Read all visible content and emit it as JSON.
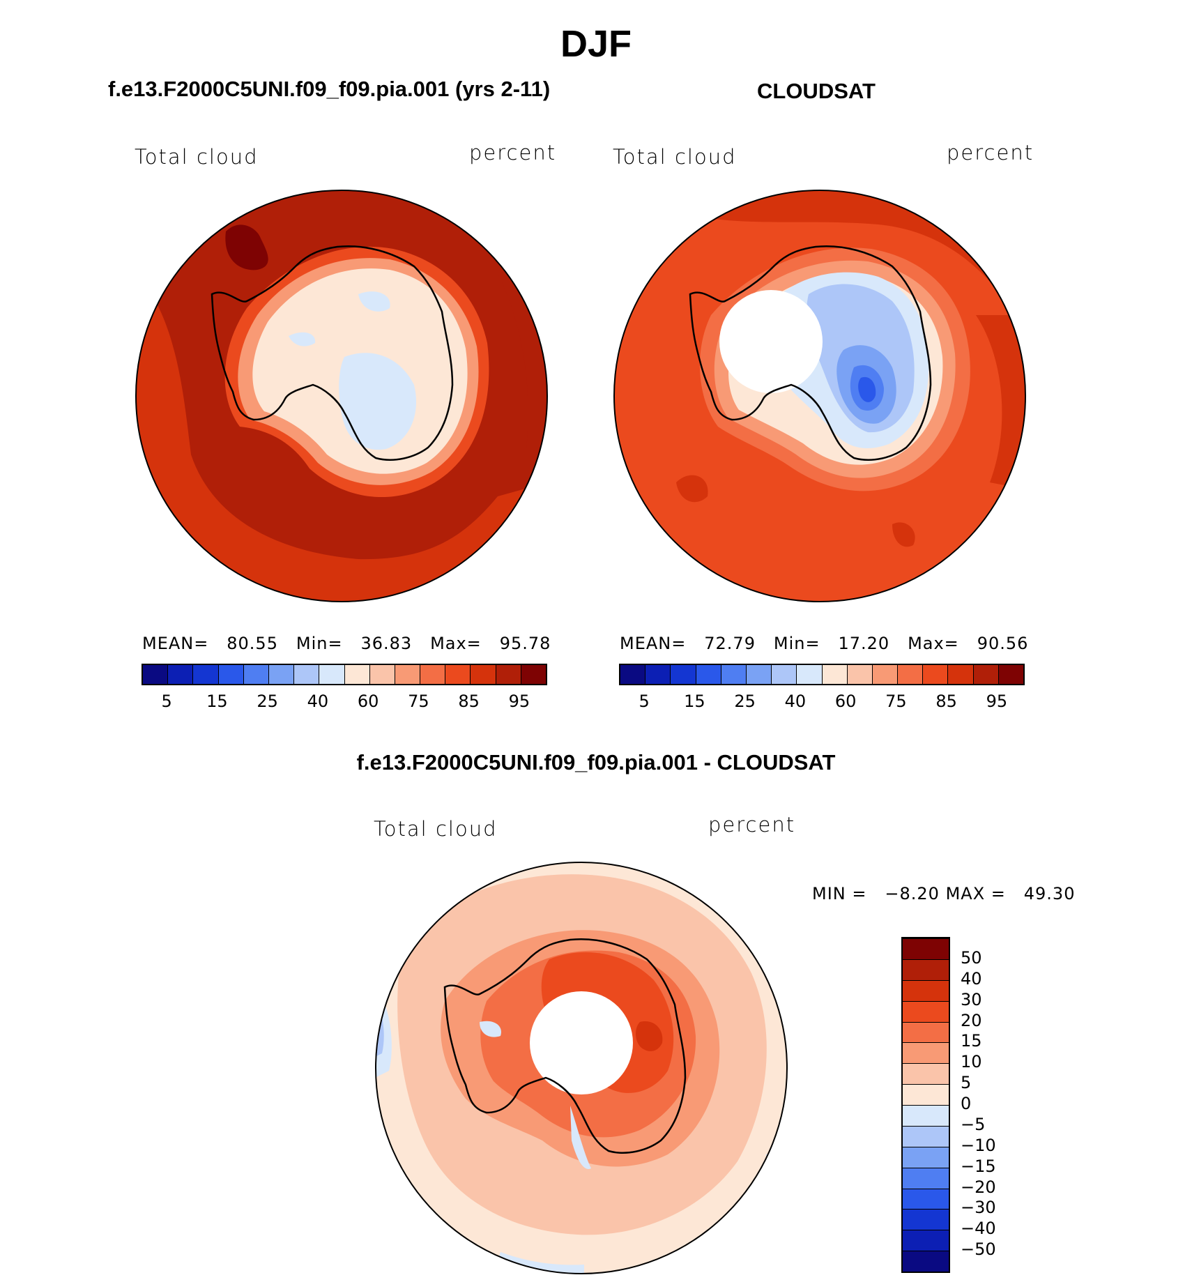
{
  "title": "DJF",
  "panels": [
    {
      "title": "f.e13.F2000C5UNI.f09_f09.pia.001 (yrs 2-11)",
      "left_label": "Total cloud",
      "right_label": "percent",
      "stats": {
        "mean_label": "MEAN=",
        "mean": "80.55",
        "min_label": "Min=",
        "min": "36.83",
        "max_label": "Max=",
        "max": "95.78"
      }
    },
    {
      "title": "CLOUDSAT",
      "left_label": "Total cloud",
      "right_label": "percent",
      "stats": {
        "mean_label": "MEAN=",
        "mean": "72.79",
        "min_label": "Min=",
        "min": "17.20",
        "max_label": "Max=",
        "max": "90.56"
      }
    }
  ],
  "colorbar_top": {
    "colors": [
      "#0a0a82",
      "#0c1fb4",
      "#1436d2",
      "#2a58ea",
      "#4f7ef2",
      "#7aa2f4",
      "#adc6f8",
      "#d8e8fb",
      "#fde7d6",
      "#fac4aa",
      "#f89a75",
      "#f36e45",
      "#eb4a1e",
      "#d5330c",
      "#b01f08",
      "#7e0303"
    ],
    "tick_labels": [
      "5",
      "15",
      "25",
      "40",
      "60",
      "75",
      "85",
      "95"
    ]
  },
  "diff_panel": {
    "title": "f.e13.F2000C5UNI.f09_f09.pia.001 - CLOUDSAT",
    "left_label": "Total cloud",
    "right_label": "percent",
    "min_label": "MIN =",
    "min": "−8.20",
    "max_label": "MAX =",
    "max": "49.30"
  },
  "colorbar_diff": {
    "colors": [
      "#0a0a82",
      "#0c1fb4",
      "#1436d2",
      "#2a58ea",
      "#4f7ef2",
      "#7aa2f4",
      "#adc6f8",
      "#d8e8fb",
      "#fde7d6",
      "#fac4aa",
      "#f89a75",
      "#f36e45",
      "#eb4a1e",
      "#d5330c",
      "#b01f08",
      "#7e0303"
    ],
    "tick_labels": [
      "−50",
      "−40",
      "−30",
      "−20",
      "−15",
      "−10",
      "−5",
      "0",
      "5",
      "10",
      "15",
      "20",
      "30",
      "40",
      "50"
    ]
  },
  "map_colors": {
    "dark_red": "#b01f08",
    "red": "#d5330c",
    "orange_red": "#eb4a1e",
    "orange": "#f36e45",
    "salmon": "#f89a75",
    "light_salmon": "#fac4aa",
    "cream": "#fde7d6",
    "pale_blue": "#d8e8fb",
    "light_blue": "#adc6f8",
    "blue": "#7aa2f4",
    "mid_blue": "#4f7ef2",
    "deep_blue": "#2a58ea",
    "maroon": "#7e0303"
  }
}
